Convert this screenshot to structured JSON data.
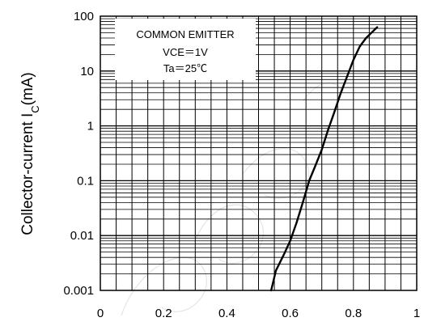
{
  "chart_data": {
    "type": "line",
    "title": "",
    "xlabel": "",
    "ylabel": "Collector-current I",
    "ylabel_subscript": "C",
    "ylabel_unit": "(mA)",
    "yscale": "log",
    "xlim": [
      0,
      1
    ],
    "ylim": [
      0.001,
      100
    ],
    "x_ticks": [
      "0",
      "0.2",
      "0.4",
      "0.6",
      "0.8",
      "1"
    ],
    "y_ticks": [
      "0.001",
      "0.01",
      "0.1",
      "1",
      "10",
      "100"
    ],
    "grid": true,
    "annotation": [
      "COMMON EMITTER",
      "VCE＝1V",
      "Ta＝25℃"
    ],
    "series": [
      {
        "x": [
          0.54,
          0.555,
          0.58,
          0.6,
          0.62,
          0.64,
          0.66,
          0.68,
          0.7,
          0.72,
          0.74,
          0.76,
          0.78,
          0.8,
          0.82,
          0.84,
          0.86,
          0.875
        ],
        "y": [
          0.001,
          0.0023,
          0.0045,
          0.008,
          0.017,
          0.04,
          0.1,
          0.19,
          0.37,
          0.85,
          1.8,
          4.0,
          8.0,
          16,
          28,
          40,
          52,
          63
        ]
      }
    ],
    "line_color": "#000000"
  }
}
